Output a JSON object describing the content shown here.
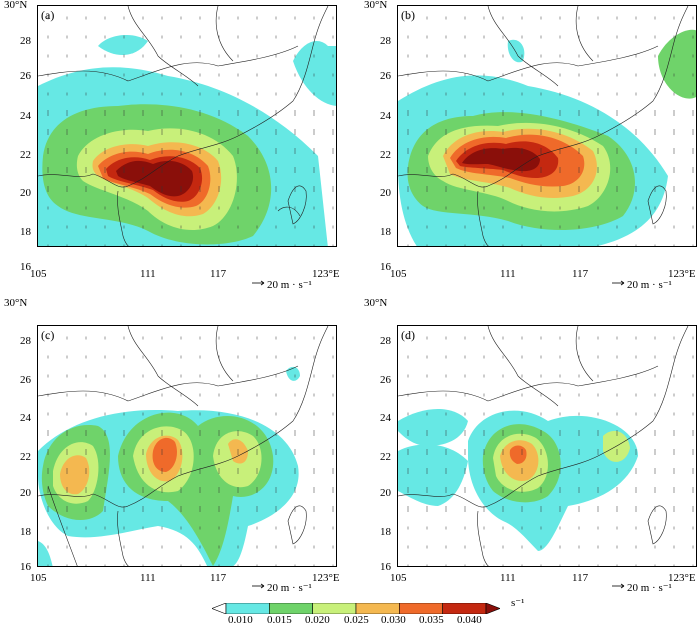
{
  "panels": [
    {
      "label": "(a)",
      "lat_top": "30°N",
      "y_ticks": [
        "28",
        "26",
        "24",
        "22",
        "20",
        "18",
        "16"
      ],
      "x_ticks": [
        "105",
        "111",
        "117",
        "123°E"
      ],
      "vector_ref": "20  m · s⁻¹"
    },
    {
      "label": "(b)",
      "lat_top": "30°N",
      "y_ticks": [
        "28",
        "26",
        "24",
        "22",
        "20",
        "18",
        "16"
      ],
      "x_ticks": [
        "105",
        "111",
        "117",
        "123°E"
      ],
      "vector_ref": "20  m · s⁻¹"
    },
    {
      "label": "(c)",
      "lat_top": "30°N",
      "y_ticks": [
        "28",
        "26",
        "24",
        "22",
        "20",
        "18",
        "16"
      ],
      "x_ticks": [
        "105",
        "111",
        "117",
        "123°E"
      ],
      "vector_ref": "20  m · s⁻¹"
    },
    {
      "label": "(d)",
      "lat_top": "30°N",
      "y_ticks": [
        "28",
        "26",
        "24",
        "22",
        "20",
        "18",
        "16"
      ],
      "x_ticks": [
        "105",
        "111",
        "117",
        "123°E"
      ],
      "vector_ref": "20  m · s⁻¹"
    }
  ],
  "colorbar": {
    "labels": [
      "0.010",
      "0.015",
      "0.020",
      "0.025",
      "0.030",
      "0.035",
      "0.040"
    ],
    "unit": "s⁻¹",
    "colors": [
      "#ffffff",
      "#66e8e4",
      "#6fd36a",
      "#c8f07a",
      "#f4b850",
      "#ef6a2a",
      "#c42810",
      "#8a0f0a"
    ]
  }
}
